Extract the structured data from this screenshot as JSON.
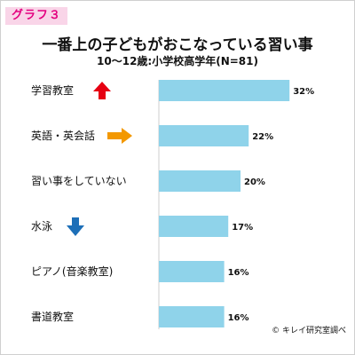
{
  "graph_tag": "グラフ３",
  "chart_data": {
    "type": "bar",
    "orientation": "horizontal",
    "title": "一番上の子どもがおこなっている習い事",
    "subtitle": "10〜12歳:小学校高学年(N=81)",
    "categories": [
      "学習教室",
      "英語・英会話",
      "習い事をしていない",
      "水泳",
      "ピアノ(音楽教室)",
      "書道教室"
    ],
    "values": [
      32,
      22,
      20,
      17,
      16,
      16
    ],
    "value_labels": [
      "32%",
      "22%",
      "20%",
      "17%",
      "16%",
      "16%"
    ],
    "unit": "%",
    "xlim": [
      0,
      35
    ],
    "bar_color": "#8fd3ea",
    "trend_arrows": [
      {
        "category_index": 0,
        "direction": "up",
        "color": "#e60012"
      },
      {
        "category_index": 1,
        "direction": "right",
        "color": "#f39800"
      },
      {
        "category_index": 3,
        "direction": "down",
        "color": "#1d6fb8"
      }
    ],
    "grid": false,
    "legend": "none"
  },
  "credit": "© キレイ研究室調べ"
}
